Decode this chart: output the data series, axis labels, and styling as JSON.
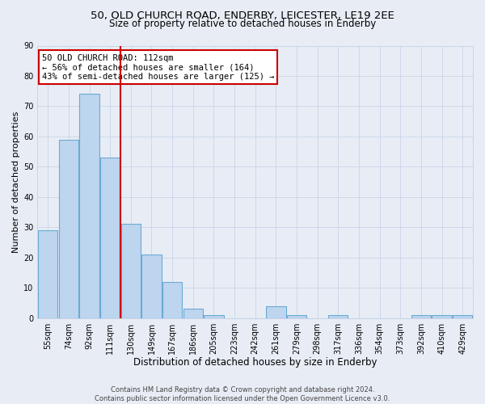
{
  "title1": "50, OLD CHURCH ROAD, ENDERBY, LEICESTER, LE19 2EE",
  "title2": "Size of property relative to detached houses in Enderby",
  "xlabel": "Distribution of detached houses by size in Enderby",
  "ylabel": "Number of detached properties",
  "categories": [
    "55sqm",
    "74sqm",
    "92sqm",
    "111sqm",
    "130sqm",
    "149sqm",
    "167sqm",
    "186sqm",
    "205sqm",
    "223sqm",
    "242sqm",
    "261sqm",
    "279sqm",
    "298sqm",
    "317sqm",
    "336sqm",
    "354sqm",
    "373sqm",
    "392sqm",
    "410sqm",
    "429sqm"
  ],
  "bar_heights": [
    29,
    59,
    74,
    53,
    31,
    21,
    12,
    3,
    1,
    0,
    0,
    4,
    1,
    0,
    1,
    0,
    0,
    0,
    1,
    1,
    1
  ],
  "vline_bar_index": 3,
  "bar_color": "#bdd5ee",
  "bar_edgecolor": "#6aaad4",
  "bar_linewidth": 0.8,
  "vline_color": "#cc0000",
  "vline_linewidth": 1.5,
  "annotation_line1": "50 OLD CHURCH ROAD: 112sqm",
  "annotation_line2": "← 56% of detached houses are smaller (164)",
  "annotation_line3": "43% of semi-detached houses are larger (125) →",
  "annotation_box_color": "white",
  "annotation_box_edgecolor": "#cc0000",
  "ylim": [
    0,
    90
  ],
  "yticks": [
    0,
    10,
    20,
    30,
    40,
    50,
    60,
    70,
    80,
    90
  ],
  "grid_color": "#c8d4e8",
  "background_color": "#e8edf5",
  "footnote_line1": "Contains HM Land Registry data © Crown copyright and database right 2024.",
  "footnote_line2": "Contains public sector information licensed under the Open Government Licence v3.0.",
  "title1_fontsize": 9.5,
  "title2_fontsize": 8.5,
  "xlabel_fontsize": 8.5,
  "ylabel_fontsize": 8,
  "tick_fontsize": 7,
  "annotation_fontsize": 7.5,
  "footnote_fontsize": 6
}
